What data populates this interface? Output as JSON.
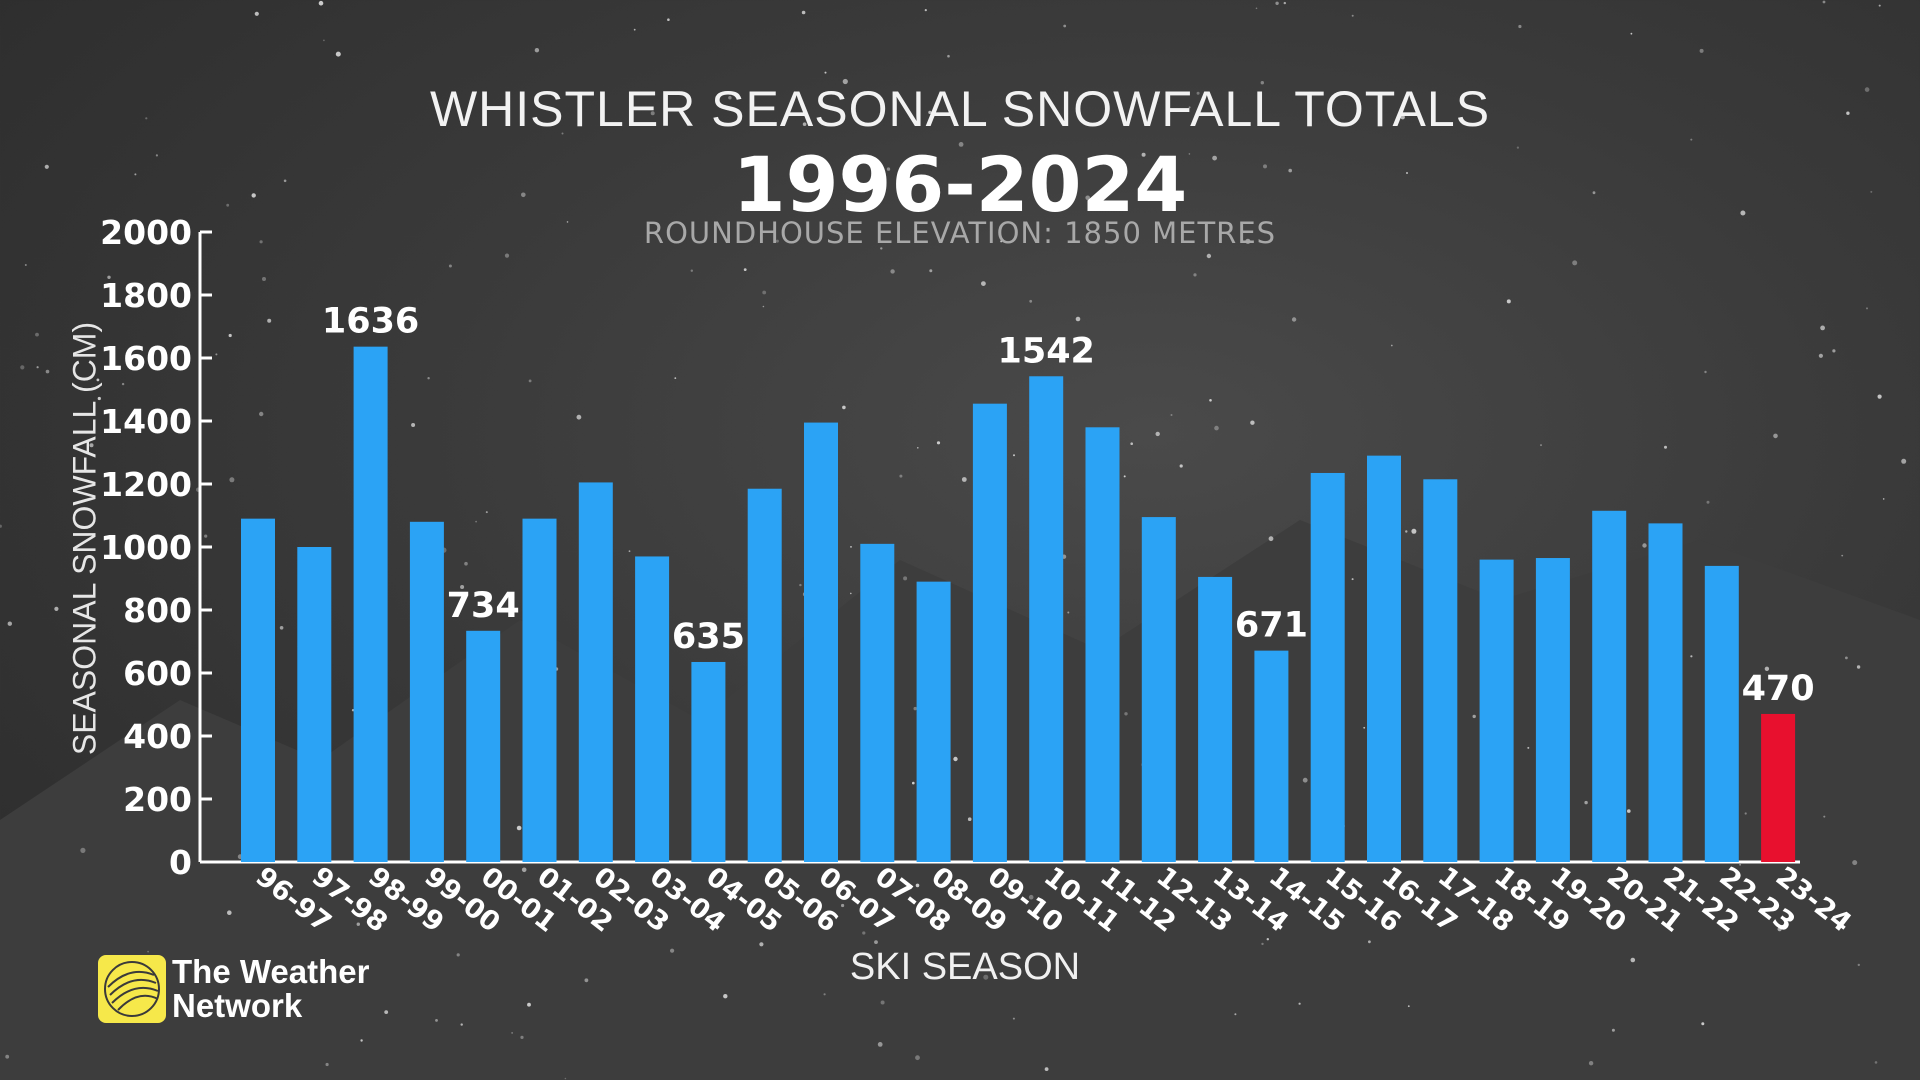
{
  "header": {
    "title": "WHISTLER SEASONAL SNOWFALL TOTALS",
    "years": "1996-2024",
    "subtitle": "ROUNDHOUSE ELEVATION: 1850 METRES"
  },
  "brand": {
    "line1": "The Weather",
    "line2": "Network",
    "logo_color": "#f6e84a"
  },
  "chart_data": {
    "type": "bar",
    "xlabel": "SKI SEASON",
    "ylabel": "SEASONAL SNOWFALL (CM)",
    "ylim": [
      0,
      2000
    ],
    "yticks": [
      0,
      200,
      400,
      600,
      800,
      1000,
      1200,
      1400,
      1600,
      1800,
      2000
    ],
    "categories": [
      "96-97",
      "97-98",
      "98-99",
      "99-00",
      "00-01",
      "01-02",
      "02-03",
      "03-04",
      "04-05",
      "05-06",
      "06-07",
      "07-08",
      "08-09",
      "09-10",
      "10-11",
      "11-12",
      "12-13",
      "13-14",
      "14-15",
      "15-16",
      "16-17",
      "17-18",
      "18-19",
      "19-20",
      "20-21",
      "21-22",
      "22-23",
      "23-24"
    ],
    "values": [
      1090,
      1000,
      1636,
      1080,
      734,
      1090,
      1205,
      970,
      635,
      1185,
      1395,
      1010,
      890,
      1455,
      1542,
      1380,
      1095,
      905,
      671,
      1235,
      1290,
      1215,
      960,
      965,
      1115,
      1075,
      940,
      470
    ],
    "labeled_values": {
      "98-99": "1636",
      "00-01": "734",
      "04-05": "635",
      "10-11": "1542",
      "14-15": "671",
      "23-24": "470"
    },
    "bar_color": "#2ba3f5",
    "highlight_color": "#e8102e",
    "highlight_category": "23-24",
    "grid": false
  }
}
